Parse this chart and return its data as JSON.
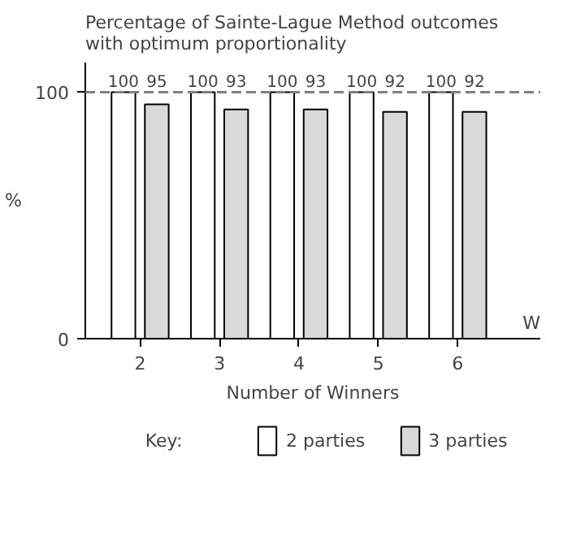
{
  "chart_data": {
    "type": "bar",
    "title": "Percentage of Sainte-Lague Method outcomes\nwith optimum proportionality",
    "xlabel": "Number of Winners",
    "ylabel": "%",
    "legend_title": "Key:",
    "categories": [
      "2",
      "3",
      "4",
      "5",
      "6"
    ],
    "series": [
      {
        "name": "2 parties",
        "color": "#ffffff",
        "values": [
          100,
          100,
          100,
          100,
          100
        ]
      },
      {
        "name": "3 parties",
        "color": "#d9d9d9",
        "values": [
          95,
          93,
          93,
          92,
          92
        ]
      }
    ],
    "ylim": [
      0,
      112
    ],
    "yticks": [
      0,
      100
    ],
    "data_labels": true,
    "grid": false,
    "legend": "bottom",
    "ref_lines": [
      {
        "axis": "y",
        "value": 100,
        "color": "#808080",
        "line_style": "dashed"
      }
    ],
    "annotations": [
      "W"
    ]
  }
}
